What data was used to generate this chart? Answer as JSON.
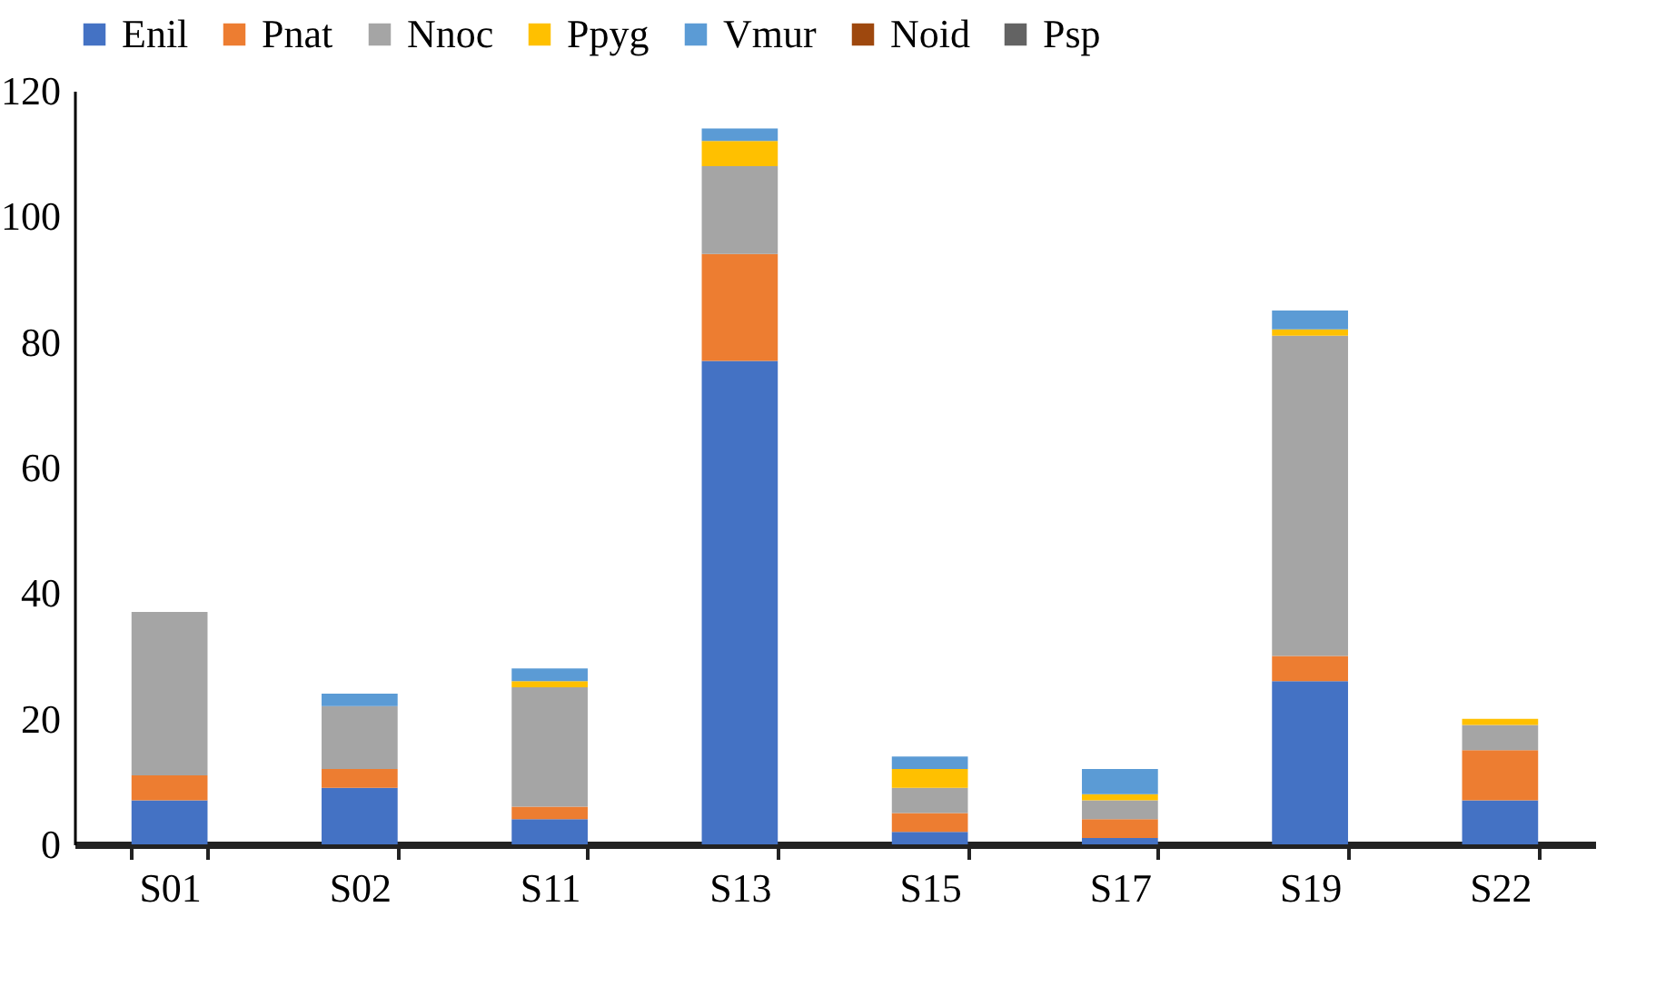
{
  "chart_data": {
    "type": "bar",
    "stacked": true,
    "legend": "top",
    "grid": false,
    "categories": [
      "S01",
      "S02",
      "S11",
      "S13",
      "S15",
      "S17",
      "S19",
      "S22"
    ],
    "ylim": [
      0,
      120
    ],
    "yticks": [
      0,
      20,
      40,
      60,
      80,
      100,
      120
    ],
    "series": [
      {
        "name": "Enil",
        "color": "#4472c4",
        "values": [
          7,
          9,
          4,
          77,
          2,
          1,
          26,
          7
        ]
      },
      {
        "name": "Pnat",
        "color": "#ed7d31",
        "values": [
          4,
          3,
          2,
          17,
          3,
          3,
          4,
          8
        ]
      },
      {
        "name": "Nnoc",
        "color": "#a5a5a5",
        "values": [
          26,
          10,
          19,
          14,
          4,
          3,
          51,
          4
        ]
      },
      {
        "name": "Ppyg",
        "color": "#ffc000",
        "values": [
          0,
          0,
          1,
          4,
          3,
          1,
          1,
          1
        ]
      },
      {
        "name": "Vmur",
        "color": "#5b9bd5",
        "values": [
          0,
          2,
          2,
          2,
          2,
          4,
          3,
          0
        ]
      },
      {
        "name": "Noid",
        "color": "#9e480e",
        "values": [
          0,
          0,
          0,
          0,
          0,
          0,
          0,
          0
        ]
      },
      {
        "name": "Psp",
        "color": "#636363",
        "values": [
          0,
          0,
          0,
          0,
          0,
          0,
          0,
          0
        ]
      }
    ]
  }
}
